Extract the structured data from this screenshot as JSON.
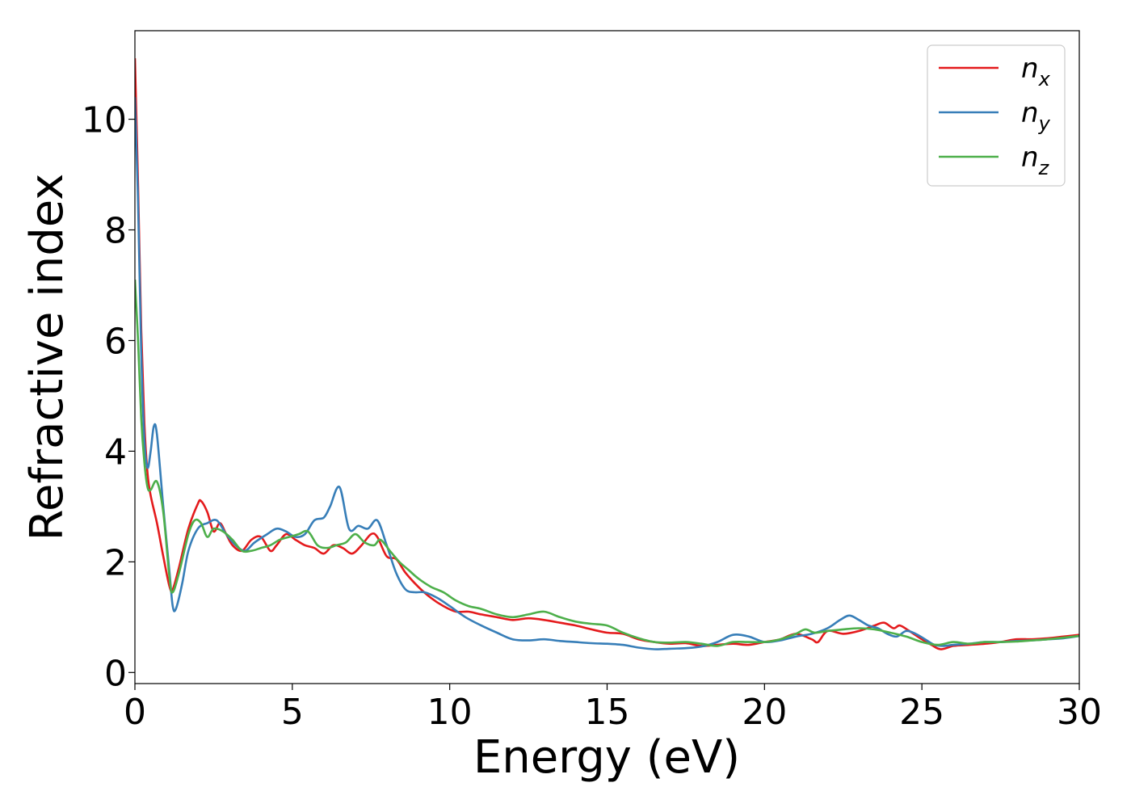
{
  "chart_data": {
    "type": "line",
    "title": "",
    "xlabel": "Energy (eV)",
    "ylabel": "Refractive index",
    "xlim": [
      0,
      30
    ],
    "ylim": [
      -0.2,
      11.6
    ],
    "xticks": [
      0,
      5,
      10,
      15,
      20,
      25,
      30
    ],
    "yticks": [
      0,
      2,
      4,
      6,
      8,
      10
    ],
    "grid": false,
    "legend_position": "top-right",
    "series": [
      {
        "name": "n",
        "subscript": "x",
        "color": "#e41a1c",
        "x": [
          0.0,
          0.1,
          0.2,
          0.3,
          0.4,
          0.5,
          0.7,
          0.9,
          1.1,
          1.2,
          1.4,
          1.7,
          2.0,
          2.1,
          2.3,
          2.5,
          2.7,
          2.9,
          3.1,
          3.4,
          3.7,
          4.0,
          4.3,
          4.5,
          4.8,
          5.1,
          5.4,
          5.7,
          6.0,
          6.3,
          6.6,
          6.9,
          7.2,
          7.5,
          7.7,
          8.0,
          8.3,
          8.6,
          9.0,
          9.4,
          9.8,
          10.2,
          10.6,
          11.0,
          11.5,
          12.0,
          12.5,
          13.0,
          13.5,
          14.0,
          14.5,
          15.0,
          15.5,
          16.0,
          16.5,
          17.0,
          17.5,
          18.0,
          18.5,
          19.0,
          19.5,
          20.0,
          20.5,
          21.0,
          21.5,
          21.7,
          22.0,
          22.5,
          23.0,
          23.5,
          23.8,
          24.1,
          24.3,
          24.6,
          25.0,
          25.3,
          25.6,
          26.0,
          26.5,
          27.0,
          27.5,
          28.0,
          28.5,
          29.0,
          29.5,
          30.0
        ],
        "values": [
          11.1,
          8.8,
          6.2,
          4.5,
          3.6,
          3.2,
          2.7,
          2.1,
          1.55,
          1.5,
          1.9,
          2.6,
          3.05,
          3.1,
          2.9,
          2.55,
          2.7,
          2.5,
          2.3,
          2.2,
          2.4,
          2.45,
          2.2,
          2.3,
          2.5,
          2.4,
          2.3,
          2.25,
          2.15,
          2.3,
          2.25,
          2.15,
          2.3,
          2.5,
          2.45,
          2.1,
          2.05,
          1.8,
          1.55,
          1.35,
          1.2,
          1.1,
          1.1,
          1.05,
          1.0,
          0.95,
          0.98,
          0.95,
          0.9,
          0.85,
          0.78,
          0.72,
          0.7,
          0.6,
          0.55,
          0.52,
          0.53,
          0.48,
          0.5,
          0.52,
          0.5,
          0.55,
          0.6,
          0.7,
          0.6,
          0.55,
          0.75,
          0.7,
          0.75,
          0.85,
          0.9,
          0.8,
          0.85,
          0.75,
          0.6,
          0.5,
          0.42,
          0.48,
          0.5,
          0.52,
          0.55,
          0.6,
          0.6,
          0.62,
          0.65,
          0.68
        ]
      },
      {
        "name": "n",
        "subscript": "y",
        "color": "#377eb8",
        "x": [
          0.0,
          0.1,
          0.2,
          0.3,
          0.4,
          0.5,
          0.6,
          0.7,
          0.9,
          1.1,
          1.2,
          1.3,
          1.5,
          1.7,
          2.0,
          2.3,
          2.6,
          2.9,
          3.2,
          3.5,
          3.8,
          4.2,
          4.5,
          4.8,
          5.1,
          5.4,
          5.7,
          6.0,
          6.2,
          6.5,
          6.8,
          7.1,
          7.4,
          7.7,
          8.0,
          8.3,
          8.6,
          8.9,
          9.2,
          9.6,
          10.0,
          10.5,
          11.0,
          11.5,
          12.0,
          12.5,
          13.0,
          13.5,
          14.0,
          14.5,
          15.0,
          15.5,
          16.0,
          16.5,
          17.0,
          17.5,
          18.0,
          18.5,
          19.0,
          19.5,
          20.0,
          20.5,
          21.0,
          21.5,
          22.0,
          22.4,
          22.7,
          23.0,
          23.3,
          23.6,
          23.9,
          24.2,
          24.5,
          24.8,
          25.1,
          25.4,
          25.7,
          26.0,
          26.5,
          27.0,
          27.5,
          28.0,
          28.5,
          29.0,
          29.5,
          30.0
        ],
        "values": [
          10.4,
          8.5,
          5.8,
          4.2,
          3.7,
          4.0,
          4.45,
          4.3,
          3.0,
          1.8,
          1.2,
          1.15,
          1.6,
          2.2,
          2.6,
          2.7,
          2.75,
          2.5,
          2.3,
          2.2,
          2.35,
          2.5,
          2.6,
          2.55,
          2.45,
          2.5,
          2.75,
          2.8,
          3.0,
          3.35,
          2.6,
          2.65,
          2.6,
          2.75,
          2.3,
          1.8,
          1.5,
          1.45,
          1.45,
          1.35,
          1.2,
          1.0,
          0.85,
          0.72,
          0.6,
          0.58,
          0.6,
          0.57,
          0.55,
          0.53,
          0.52,
          0.5,
          0.45,
          0.42,
          0.43,
          0.44,
          0.47,
          0.55,
          0.68,
          0.65,
          0.55,
          0.58,
          0.65,
          0.7,
          0.8,
          0.95,
          1.03,
          0.95,
          0.85,
          0.8,
          0.7,
          0.65,
          0.75,
          0.7,
          0.6,
          0.5,
          0.48,
          0.5,
          0.52,
          0.55,
          0.55,
          0.57,
          0.58,
          0.6,
          0.62,
          0.66
        ]
      },
      {
        "name": "n",
        "subscript": "z",
        "color": "#4daf4a",
        "x": [
          0.0,
          0.1,
          0.2,
          0.3,
          0.4,
          0.5,
          0.7,
          0.9,
          1.1,
          1.2,
          1.4,
          1.7,
          1.9,
          2.1,
          2.3,
          2.5,
          2.8,
          3.1,
          3.4,
          3.7,
          4.0,
          4.3,
          4.6,
          4.9,
          5.2,
          5.5,
          5.8,
          6.1,
          6.4,
          6.7,
          7.0,
          7.3,
          7.6,
          7.8,
          8.1,
          8.4,
          8.7,
          9.0,
          9.4,
          9.8,
          10.2,
          10.6,
          11.0,
          11.5,
          12.0,
          12.5,
          13.0,
          13.5,
          14.0,
          14.5,
          15.0,
          15.5,
          16.0,
          16.5,
          17.0,
          17.5,
          18.0,
          18.5,
          19.0,
          19.5,
          20.0,
          20.5,
          21.0,
          21.3,
          21.6,
          22.0,
          22.5,
          23.0,
          23.5,
          24.0,
          24.5,
          25.0,
          25.5,
          26.0,
          26.5,
          27.0,
          27.5,
          28.0,
          28.5,
          29.0,
          29.5,
          30.0
        ],
        "values": [
          7.1,
          6.0,
          4.6,
          3.8,
          3.35,
          3.3,
          3.45,
          2.9,
          1.7,
          1.45,
          1.8,
          2.5,
          2.75,
          2.7,
          2.45,
          2.6,
          2.55,
          2.4,
          2.2,
          2.2,
          2.25,
          2.3,
          2.4,
          2.45,
          2.5,
          2.55,
          2.3,
          2.25,
          2.3,
          2.35,
          2.5,
          2.35,
          2.3,
          2.4,
          2.2,
          2.0,
          1.85,
          1.7,
          1.55,
          1.45,
          1.3,
          1.2,
          1.15,
          1.05,
          1.0,
          1.05,
          1.1,
          1.0,
          0.92,
          0.88,
          0.85,
          0.72,
          0.62,
          0.55,
          0.54,
          0.55,
          0.52,
          0.48,
          0.55,
          0.55,
          0.55,
          0.6,
          0.7,
          0.78,
          0.72,
          0.75,
          0.78,
          0.8,
          0.78,
          0.72,
          0.65,
          0.55,
          0.5,
          0.55,
          0.52,
          0.55,
          0.55,
          0.56,
          0.58,
          0.6,
          0.63,
          0.66
        ]
      }
    ]
  }
}
